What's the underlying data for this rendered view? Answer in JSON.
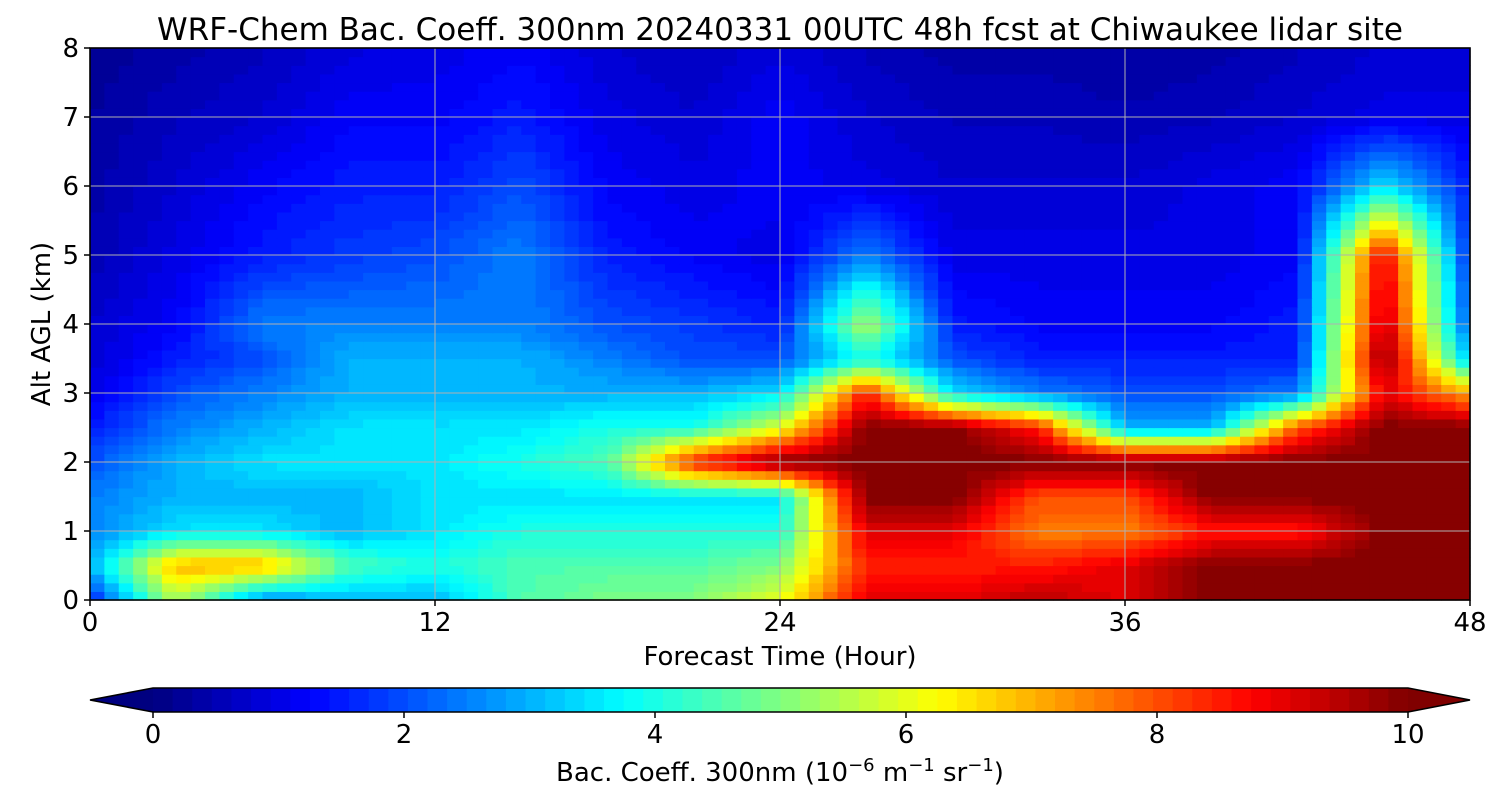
{
  "chart_data": {
    "type": "heatmap",
    "title": "WRF-Chem Bac. Coeff. 300nm  20240331 00UTC 48h fcst at Chiwaukee lidar site",
    "xlabel": "Forecast Time (Hour)",
    "ylabel": "Alt AGL (km)",
    "xlim": [
      0,
      48
    ],
    "ylim": [
      0,
      8
    ],
    "x_ticks": [
      "0",
      "12",
      "24",
      "36",
      "48"
    ],
    "y_ticks": [
      "0",
      "1",
      "2",
      "3",
      "4",
      "5",
      "6",
      "7",
      "8"
    ],
    "grid": true,
    "colormap": "jet",
    "colorbar": {
      "label_prefix": "Bac. Coeff. 300nm  (10",
      "label_exp1": "−6",
      "label_mid": " m",
      "label_exp2": "−1",
      "label_mid2": " sr",
      "label_exp3": "−1",
      "label_suffix": ")",
      "vmin": 0,
      "vmax": 10,
      "ticks": [
        "0",
        "2",
        "4",
        "6",
        "8",
        "10"
      ],
      "extend": "both",
      "orientation": "horizontal"
    },
    "hours": [
      0,
      3,
      6,
      9,
      12,
      15,
      18,
      21,
      24,
      27,
      30,
      33,
      36,
      39,
      42,
      45,
      48
    ],
    "altitudes_km": [
      0,
      0.5,
      1,
      1.5,
      2,
      2.5,
      3,
      3.5,
      4,
      5,
      6,
      7,
      8
    ],
    "values": [
      [
        1.5,
        5.5,
        2.5,
        3.0,
        3.0,
        4.5,
        5.0,
        5.0,
        6.0,
        9.0,
        9.0,
        9.5,
        9.0,
        10.0,
        10.0,
        10.0,
        10.0
      ],
      [
        3.0,
        7.0,
        7.0,
        4.5,
        4.0,
        4.5,
        4.5,
        4.5,
        5.0,
        8.5,
        8.5,
        8.5,
        9.0,
        10.0,
        10.0,
        10.0,
        10.0
      ],
      [
        2.5,
        3.5,
        3.5,
        3.0,
        3.5,
        4.0,
        4.0,
        4.0,
        4.0,
        9.0,
        9.0,
        7.5,
        7.5,
        8.5,
        8.5,
        10.0,
        10.0
      ],
      [
        2.5,
        3.0,
        3.0,
        3.0,
        3.5,
        3.5,
        3.5,
        3.5,
        3.5,
        10.0,
        10.0,
        8.0,
        8.0,
        10.0,
        10.0,
        10.0,
        10.0
      ],
      [
        2.0,
        3.0,
        3.5,
        3.5,
        3.5,
        4.0,
        4.5,
        8.5,
        10.0,
        10.0,
        10.0,
        10.0,
        10.0,
        10.0,
        10.0,
        10.0,
        10.0
      ],
      [
        1.5,
        2.5,
        3.0,
        3.5,
        3.5,
        3.5,
        4.0,
        4.0,
        6.0,
        10.0,
        10.0,
        8.5,
        3.0,
        3.0,
        8.0,
        10.0,
        10.0
      ],
      [
        1.0,
        2.0,
        2.5,
        3.0,
        3.0,
        3.0,
        3.0,
        3.0,
        3.5,
        8.5,
        3.5,
        2.5,
        2.0,
        2.0,
        2.5,
        9.0,
        7.0
      ],
      [
        0.8,
        1.5,
        2.0,
        3.0,
        3.0,
        3.0,
        2.5,
        2.0,
        2.0,
        4.0,
        2.0,
        1.5,
        1.5,
        1.5,
        1.5,
        10.0,
        3.0
      ],
      [
        0.8,
        1.2,
        2.5,
        2.5,
        2.5,
        2.5,
        2.0,
        1.8,
        1.5,
        5.5,
        1.5,
        1.2,
        1.2,
        1.2,
        1.5,
        9.5,
        2.0
      ],
      [
        0.5,
        1.0,
        1.5,
        1.8,
        2.0,
        2.5,
        1.5,
        1.2,
        1.0,
        2.5,
        1.0,
        1.0,
        1.0,
        1.0,
        1.2,
        9.0,
        1.5
      ],
      [
        0.4,
        0.8,
        1.2,
        1.5,
        1.5,
        2.0,
        1.2,
        1.0,
        1.2,
        1.0,
        0.8,
        0.8,
        0.8,
        1.0,
        1.2,
        3.5,
        1.5
      ],
      [
        0.3,
        0.6,
        0.8,
        1.2,
        1.2,
        1.5,
        1.0,
        0.8,
        1.2,
        0.8,
        0.6,
        0.6,
        0.5,
        0.6,
        0.8,
        1.0,
        1.0
      ],
      [
        0.2,
        0.4,
        0.6,
        0.9,
        1.0,
        1.2,
        0.8,
        0.6,
        0.9,
        0.6,
        0.4,
        0.4,
        0.3,
        0.4,
        0.6,
        0.8,
        0.8
      ]
    ]
  }
}
